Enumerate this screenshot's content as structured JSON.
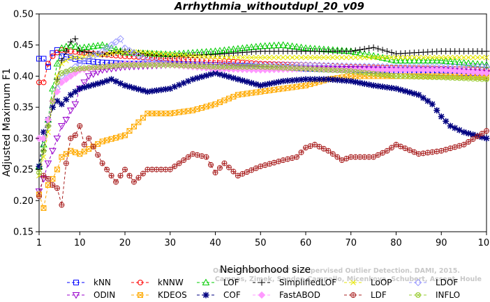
{
  "chart_data": {
    "type": "line",
    "title": "Arrhythmia_withoutdupl_20_v09",
    "xlabel": "Neighborhood size",
    "ylabel": "Adjusted Maximum F1",
    "xlim": [
      1,
      100
    ],
    "ylim": [
      0.15,
      0.5
    ],
    "x_ticks": [
      "1",
      "10",
      "20",
      "30",
      "40",
      "50",
      "60",
      "70",
      "80",
      "90",
      "100"
    ],
    "y_ticks": [
      "0.15",
      "0.20",
      "0.25",
      "0.30",
      "0.35",
      "0.40",
      "0.45",
      "0.50"
    ],
    "grid": false,
    "legend_position": "bottom",
    "watermark": [
      "On the Evaluation of Unsupervised Outlier Detection. DAMI, 2015.",
      "Campos, Zimek, Sander, Campello, Micenkova, Schubert, Assent, Houle"
    ],
    "series": [
      {
        "name": "kNN",
        "color": "#0000ff",
        "marker": "square",
        "dash": "4,3",
        "keys": [
          [
            2,
            0.428
          ],
          [
            3,
            0.415
          ],
          [
            4,
            0.437
          ],
          [
            5,
            0.442
          ],
          [
            6,
            0.432
          ],
          [
            8,
            0.43
          ],
          [
            10,
            0.425
          ],
          [
            15,
            0.422
          ],
          [
            20,
            0.42
          ],
          [
            30,
            0.42
          ],
          [
            40,
            0.418
          ],
          [
            50,
            0.415
          ],
          [
            60,
            0.412
          ],
          [
            70,
            0.41
          ],
          [
            80,
            0.408
          ],
          [
            90,
            0.405
          ],
          [
            100,
            0.405
          ]
        ]
      },
      {
        "name": "kNNW",
        "color": "#ff0000",
        "marker": "circle",
        "dash": "4,3",
        "keys": [
          [
            2,
            0.39
          ],
          [
            3,
            0.42
          ],
          [
            4,
            0.432
          ],
          [
            5,
            0.438
          ],
          [
            6,
            0.442
          ],
          [
            8,
            0.44
          ],
          [
            10,
            0.438
          ],
          [
            20,
            0.432
          ],
          [
            30,
            0.428
          ],
          [
            40,
            0.425
          ],
          [
            50,
            0.42
          ],
          [
            60,
            0.418
          ],
          [
            70,
            0.415
          ],
          [
            80,
            0.413
          ],
          [
            90,
            0.412
          ],
          [
            100,
            0.41
          ]
        ]
      },
      {
        "name": "LOF",
        "color": "#00cc00",
        "marker": "triangle",
        "dash": "4,3",
        "keys": [
          [
            1,
            0.255
          ],
          [
            2,
            0.29
          ],
          [
            3,
            0.33
          ],
          [
            4,
            0.38
          ],
          [
            5,
            0.42
          ],
          [
            6,
            0.445
          ],
          [
            8,
            0.45
          ],
          [
            10,
            0.445
          ],
          [
            15,
            0.45
          ],
          [
            20,
            0.438
          ],
          [
            30,
            0.435
          ],
          [
            40,
            0.44
          ],
          [
            50,
            0.448
          ],
          [
            55,
            0.45
          ],
          [
            60,
            0.445
          ],
          [
            70,
            0.44
          ],
          [
            80,
            0.425
          ],
          [
            90,
            0.425
          ],
          [
            100,
            0.418
          ]
        ]
      },
      {
        "name": "SimplifiedLOF",
        "color": "#000000",
        "marker": "plus",
        "dash": "4,3",
        "keys": [
          [
            1,
            0.25
          ],
          [
            2,
            0.28
          ],
          [
            3,
            0.32
          ],
          [
            4,
            0.35
          ],
          [
            5,
            0.395
          ],
          [
            6,
            0.425
          ],
          [
            8,
            0.455
          ],
          [
            9,
            0.46
          ],
          [
            10,
            0.44
          ],
          [
            15,
            0.435
          ],
          [
            20,
            0.44
          ],
          [
            25,
            0.435
          ],
          [
            30,
            0.432
          ],
          [
            40,
            0.435
          ],
          [
            50,
            0.44
          ],
          [
            60,
            0.44
          ],
          [
            70,
            0.44
          ],
          [
            75,
            0.446
          ],
          [
            80,
            0.436
          ],
          [
            90,
            0.44
          ],
          [
            100,
            0.44
          ]
        ]
      },
      {
        "name": "LoOP",
        "color": "#e6e600",
        "marker": "cross",
        "dash": "4,3",
        "keys": [
          [
            1,
            0.24
          ],
          [
            2,
            0.27
          ],
          [
            3,
            0.31
          ],
          [
            4,
            0.36
          ],
          [
            5,
            0.4
          ],
          [
            6,
            0.42
          ],
          [
            8,
            0.43
          ],
          [
            10,
            0.43
          ],
          [
            20,
            0.44
          ],
          [
            30,
            0.435
          ],
          [
            40,
            0.43
          ],
          [
            50,
            0.43
          ],
          [
            60,
            0.43
          ],
          [
            70,
            0.43
          ],
          [
            80,
            0.43
          ],
          [
            90,
            0.43
          ],
          [
            100,
            0.43
          ]
        ]
      },
      {
        "name": "LDOF",
        "color": "#9999ff",
        "marker": "diamond",
        "dash": "4,3",
        "keys": [
          [
            2,
            0.3
          ],
          [
            4,
            0.36
          ],
          [
            6,
            0.4
          ],
          [
            10,
            0.42
          ],
          [
            15,
            0.44
          ],
          [
            19,
            0.46
          ],
          [
            20,
            0.445
          ],
          [
            25,
            0.425
          ],
          [
            30,
            0.42
          ],
          [
            40,
            0.418
          ],
          [
            50,
            0.418
          ],
          [
            60,
            0.418
          ],
          [
            70,
            0.416
          ],
          [
            80,
            0.415
          ],
          [
            90,
            0.415
          ],
          [
            100,
            0.415
          ]
        ]
      },
      {
        "name": "ODIN",
        "color": "#9900cc",
        "marker": "triangle-down",
        "dash": "4,3",
        "keys": [
          [
            1,
            0.215
          ],
          [
            2,
            0.235
          ],
          [
            3,
            0.26
          ],
          [
            4,
            0.28
          ],
          [
            5,
            0.3
          ],
          [
            6,
            0.32
          ],
          [
            7,
            0.33
          ],
          [
            8,
            0.345
          ],
          [
            9,
            0.355
          ],
          [
            10,
            0.38
          ],
          [
            12,
            0.4
          ],
          [
            15,
            0.41
          ],
          [
            20,
            0.415
          ],
          [
            30,
            0.418
          ],
          [
            40,
            0.415
          ],
          [
            50,
            0.412
          ],
          [
            60,
            0.412
          ],
          [
            70,
            0.412
          ],
          [
            80,
            0.41
          ],
          [
            90,
            0.41
          ],
          [
            100,
            0.405
          ]
        ]
      },
      {
        "name": "KDEOS",
        "color": "#ffaa00",
        "marker": "square-x",
        "dash": "4,3",
        "keys": [
          [
            1,
            0.21
          ],
          [
            2,
            0.188
          ],
          [
            3,
            0.225
          ],
          [
            4,
            0.235
          ],
          [
            5,
            0.25
          ],
          [
            6,
            0.27
          ],
          [
            8,
            0.28
          ],
          [
            10,
            0.275
          ],
          [
            15,
            0.295
          ],
          [
            20,
            0.305
          ],
          [
            25,
            0.34
          ],
          [
            30,
            0.34
          ],
          [
            35,
            0.345
          ],
          [
            40,
            0.355
          ],
          [
            45,
            0.37
          ],
          [
            50,
            0.375
          ],
          [
            55,
            0.38
          ],
          [
            60,
            0.385
          ],
          [
            65,
            0.395
          ],
          [
            70,
            0.4
          ],
          [
            80,
            0.4
          ],
          [
            90,
            0.4
          ],
          [
            100,
            0.398
          ]
        ]
      },
      {
        "name": "COF",
        "color": "#000080",
        "marker": "asterisk",
        "dash": "4,3",
        "keys": [
          [
            1,
            0.255
          ],
          [
            2,
            0.31
          ],
          [
            3,
            0.33
          ],
          [
            4,
            0.35
          ],
          [
            5,
            0.36
          ],
          [
            6,
            0.355
          ],
          [
            8,
            0.37
          ],
          [
            10,
            0.38
          ],
          [
            15,
            0.39
          ],
          [
            17,
            0.395
          ],
          [
            20,
            0.385
          ],
          [
            25,
            0.375
          ],
          [
            30,
            0.38
          ],
          [
            35,
            0.395
          ],
          [
            40,
            0.405
          ],
          [
            45,
            0.395
          ],
          [
            50,
            0.385
          ],
          [
            55,
            0.392
          ],
          [
            60,
            0.395
          ],
          [
            65,
            0.395
          ],
          [
            70,
            0.392
          ],
          [
            75,
            0.385
          ],
          [
            80,
            0.38
          ],
          [
            85,
            0.37
          ],
          [
            88,
            0.355
          ],
          [
            90,
            0.335
          ],
          [
            92,
            0.32
          ],
          [
            95,
            0.31
          ],
          [
            100,
            0.3
          ]
        ]
      },
      {
        "name": "FastABOD",
        "color": "#ff99ff",
        "marker": "diamond-filled",
        "dash": "4,3",
        "keys": [
          [
            2,
            0.3
          ],
          [
            4,
            0.36
          ],
          [
            6,
            0.39
          ],
          [
            10,
            0.41
          ],
          [
            20,
            0.42
          ],
          [
            30,
            0.418
          ],
          [
            40,
            0.412
          ],
          [
            50,
            0.41
          ],
          [
            60,
            0.412
          ],
          [
            70,
            0.41
          ],
          [
            80,
            0.41
          ],
          [
            90,
            0.41
          ],
          [
            100,
            0.405
          ]
        ]
      },
      {
        "name": "LDF",
        "color": "#aa2222",
        "marker": "circle-plus",
        "dash": "4,3",
        "keys": [
          [
            1,
            0.207
          ],
          [
            2,
            0.24
          ],
          [
            3,
            0.235
          ],
          [
            4,
            0.225
          ],
          [
            5,
            0.22
          ],
          [
            6,
            0.193
          ],
          [
            7,
            0.26
          ],
          [
            8,
            0.3
          ],
          [
            9,
            0.305
          ],
          [
            10,
            0.32
          ],
          [
            11,
            0.29
          ],
          [
            12,
            0.3
          ],
          [
            15,
            0.26
          ],
          [
            18,
            0.23
          ],
          [
            20,
            0.25
          ],
          [
            22,
            0.23
          ],
          [
            25,
            0.25
          ],
          [
            30,
            0.25
          ],
          [
            35,
            0.275
          ],
          [
            38,
            0.27
          ],
          [
            40,
            0.245
          ],
          [
            42,
            0.26
          ],
          [
            45,
            0.24
          ],
          [
            50,
            0.255
          ],
          [
            55,
            0.265
          ],
          [
            58,
            0.27
          ],
          [
            60,
            0.285
          ],
          [
            62,
            0.29
          ],
          [
            65,
            0.28
          ],
          [
            68,
            0.265
          ],
          [
            70,
            0.27
          ],
          [
            75,
            0.27
          ],
          [
            78,
            0.28
          ],
          [
            80,
            0.29
          ],
          [
            85,
            0.275
          ],
          [
            90,
            0.28
          ],
          [
            95,
            0.29
          ],
          [
            100,
            0.312
          ]
        ]
      },
      {
        "name": "INFLO",
        "color": "#99cc33",
        "marker": "circle-x",
        "dash": "4,3",
        "keys": [
          [
            1,
            0.245
          ],
          [
            2,
            0.28
          ],
          [
            3,
            0.32
          ],
          [
            4,
            0.36
          ],
          [
            5,
            0.39
          ],
          [
            6,
            0.405
          ],
          [
            8,
            0.41
          ],
          [
            10,
            0.412
          ],
          [
            20,
            0.418
          ],
          [
            30,
            0.418
          ],
          [
            40,
            0.415
          ],
          [
            50,
            0.415
          ],
          [
            60,
            0.412
          ],
          [
            70,
            0.408
          ],
          [
            80,
            0.4
          ],
          [
            90,
            0.398
          ],
          [
            100,
            0.395
          ]
        ]
      }
    ]
  }
}
